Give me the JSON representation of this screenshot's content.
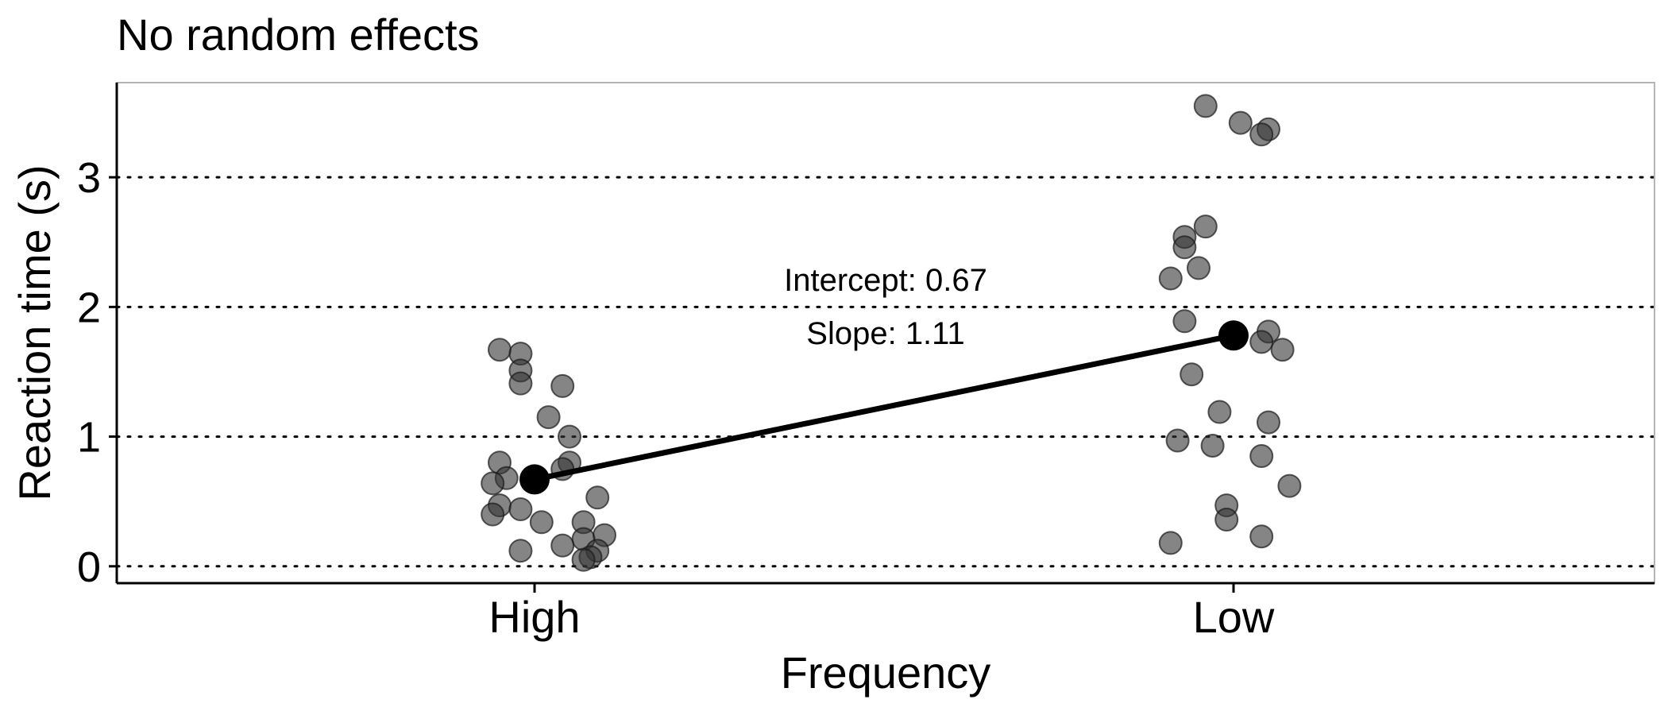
{
  "chart_data": {
    "type": "scatter",
    "title": "No random effects",
    "xlabel": "Frequency",
    "ylabel": "Reaction time (s)",
    "categories": [
      "High",
      "Low"
    ],
    "y_ticks": [
      0,
      1,
      2,
      3
    ],
    "ylim": [
      -0.13,
      3.73
    ],
    "grid": "horizontal dotted at y ticks",
    "point_color": "#333333",
    "line_color": "#000000",
    "series": [
      {
        "category": "High",
        "points": [
          {
            "x": 0.95,
            "y": 1.67
          },
          {
            "x": 0.98,
            "y": 1.64
          },
          {
            "x": 0.98,
            "y": 1.51
          },
          {
            "x": 0.98,
            "y": 1.41
          },
          {
            "x": 1.04,
            "y": 1.39
          },
          {
            "x": 1.02,
            "y": 1.15
          },
          {
            "x": 1.05,
            "y": 1.0
          },
          {
            "x": 0.95,
            "y": 0.8
          },
          {
            "x": 1.05,
            "y": 0.8
          },
          {
            "x": 1.04,
            "y": 0.75
          },
          {
            "x": 0.96,
            "y": 0.68
          },
          {
            "x": 0.94,
            "y": 0.64
          },
          {
            "x": 1.09,
            "y": 0.53
          },
          {
            "x": 0.95,
            "y": 0.47
          },
          {
            "x": 0.98,
            "y": 0.44
          },
          {
            "x": 0.94,
            "y": 0.4
          },
          {
            "x": 1.01,
            "y": 0.34
          },
          {
            "x": 1.07,
            "y": 0.34
          },
          {
            "x": 1.1,
            "y": 0.24
          },
          {
            "x": 1.07,
            "y": 0.21
          },
          {
            "x": 1.04,
            "y": 0.16
          },
          {
            "x": 1.09,
            "y": 0.12
          },
          {
            "x": 0.98,
            "y": 0.12
          },
          {
            "x": 1.08,
            "y": 0.07
          },
          {
            "x": 1.07,
            "y": 0.05
          }
        ]
      },
      {
        "category": "Low",
        "points": [
          {
            "x": 1.96,
            "y": 3.55
          },
          {
            "x": 2.01,
            "y": 3.42
          },
          {
            "x": 2.05,
            "y": 3.37
          },
          {
            "x": 2.04,
            "y": 3.33
          },
          {
            "x": 1.96,
            "y": 2.62
          },
          {
            "x": 1.93,
            "y": 2.54
          },
          {
            "x": 1.93,
            "y": 2.46
          },
          {
            "x": 1.95,
            "y": 2.3
          },
          {
            "x": 1.91,
            "y": 2.22
          },
          {
            "x": 1.93,
            "y": 1.89
          },
          {
            "x": 2.05,
            "y": 1.81
          },
          {
            "x": 2.04,
            "y": 1.73
          },
          {
            "x": 2.07,
            "y": 1.67
          },
          {
            "x": 1.94,
            "y": 1.48
          },
          {
            "x": 1.98,
            "y": 1.19
          },
          {
            "x": 2.05,
            "y": 1.11
          },
          {
            "x": 1.92,
            "y": 0.97
          },
          {
            "x": 1.97,
            "y": 0.93
          },
          {
            "x": 2.04,
            "y": 0.85
          },
          {
            "x": 2.08,
            "y": 0.62
          },
          {
            "x": 1.99,
            "y": 0.47
          },
          {
            "x": 1.99,
            "y": 0.36
          },
          {
            "x": 2.04,
            "y": 0.23
          },
          {
            "x": 1.91,
            "y": 0.18
          }
        ]
      }
    ],
    "fit_line": {
      "points": [
        {
          "category": "High",
          "y": 0.67
        },
        {
          "category": "Low",
          "y": 1.78
        }
      ]
    },
    "annotations": {
      "intercept": "Intercept: 0.67",
      "slope": "Slope: 1.11"
    }
  }
}
